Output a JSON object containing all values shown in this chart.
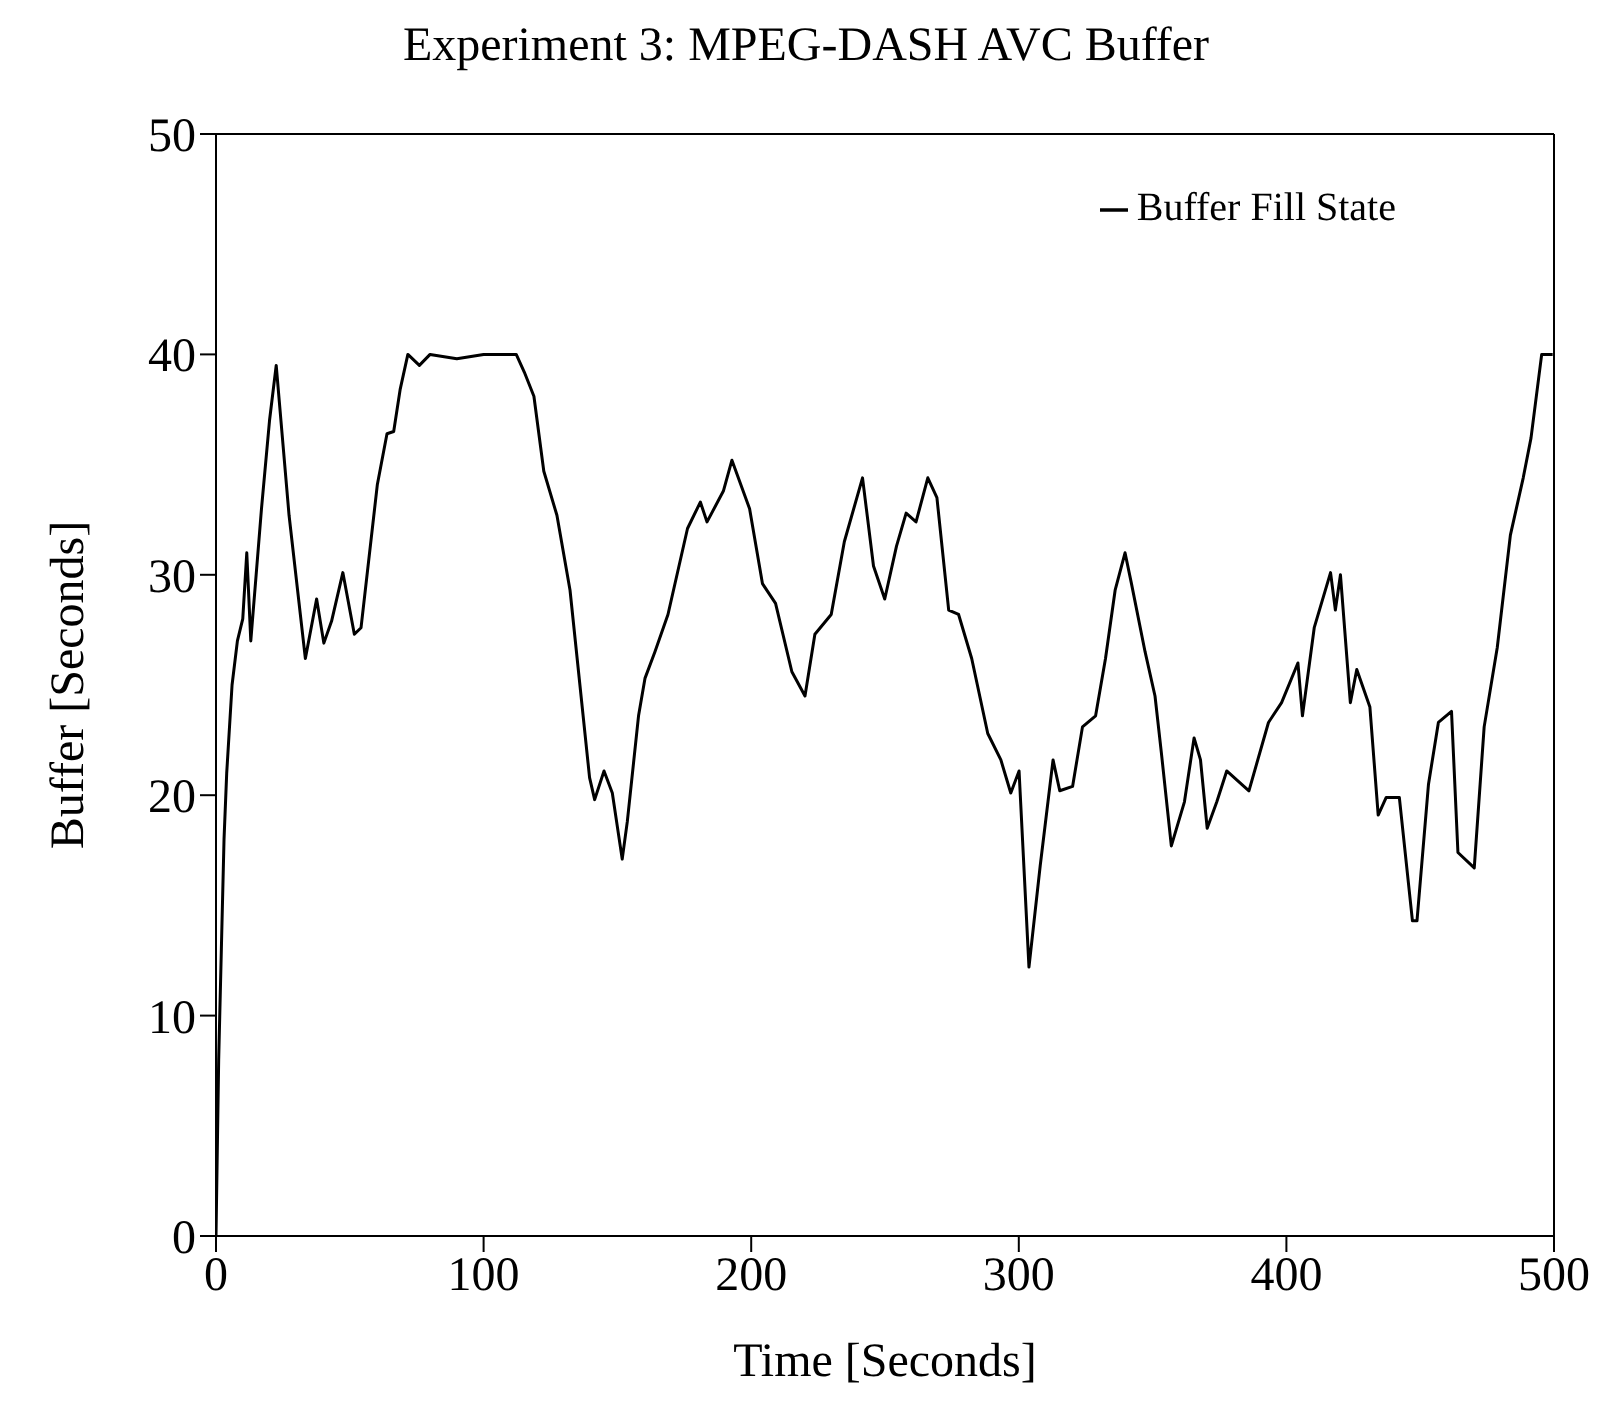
{
  "chart_data": {
    "type": "line",
    "title": "Experiment 3: MPEG-DASH AVC Buffer",
    "xlabel": "Time [Seconds]",
    "ylabel": "Buffer [Seconds]",
    "xlim": [
      0,
      500
    ],
    "xticks": [
      0,
      100,
      200,
      300,
      400,
      500
    ],
    "ylim": [
      0,
      50
    ],
    "yticks": [
      0,
      10,
      20,
      30,
      40,
      50
    ],
    "legend": "top right",
    "marker": "none",
    "line_style": "solid",
    "series": [
      {
        "name": "Buffer Fill State",
        "color": "#000000",
        "x": [
          0,
          1,
          2,
          3,
          4,
          6,
          8,
          10,
          11.5,
          13,
          15,
          17,
          20,
          22.5,
          27.3,
          33.4,
          37.6,
          40.3,
          43.2,
          47.4,
          51.7,
          54.2,
          60.3,
          63.9,
          66.4,
          68.8,
          71.7,
          76,
          80,
          90,
          100,
          112.2,
          115.2,
          118.8,
          122.5,
          127.4,
          132.3,
          139.6,
          141.5,
          145,
          148.1,
          151.8,
          153.7,
          157.9,
          160.3,
          164,
          168.9,
          176.2,
          181,
          183.5,
          189.6,
          192.8,
          199.4,
          204.2,
          209.1,
          215.2,
          220.1,
          223.8,
          229.9,
          234.8,
          241.6,
          245.7,
          249.9,
          254.3,
          257.9,
          261.6,
          266,
          269.4,
          273.8,
          277.5,
          282.4,
          288.4,
          293.3,
          297,
          300.1,
          303.8,
          308,
          312.8,
          315.3,
          320.1,
          323.8,
          328.7,
          332.4,
          336,
          339.7,
          342.1,
          347.2,
          350.9,
          353.3,
          357,
          361.9,
          365.5,
          367.9,
          370.4,
          374,
          377.7,
          386,
          393.3,
          398.2,
          404.3,
          406,
          410.4,
          416.5,
          418.3,
          420.2,
          423.9,
          426.3,
          431.2,
          434.3,
          437.3,
          442.2,
          447.1,
          448.8,
          453.1,
          456.8,
          461.7,
          464.1,
          470.2,
          473.9,
          478.8,
          483.7,
          488.5,
          491.4,
          495.4,
          499.5
        ],
        "values": [
          0,
          8,
          13,
          18,
          21,
          25,
          27,
          28,
          31,
          27,
          30,
          33,
          37,
          39.5,
          32.7,
          26.2,
          28.9,
          26.9,
          27.9,
          30.1,
          27.3,
          27.6,
          34.1,
          36.4,
          36.5,
          38.4,
          40,
          39.5,
          40,
          39.8,
          40,
          40,
          39.2,
          38.1,
          34.7,
          32.7,
          29.3,
          20.8,
          19.8,
          21.1,
          20.1,
          17.1,
          18.8,
          23.6,
          25.3,
          26.5,
          28.2,
          32.1,
          33.3,
          32.4,
          33.8,
          35.2,
          33,
          29.6,
          28.7,
          25.6,
          24.5,
          27.3,
          28.2,
          31.5,
          34.4,
          30.4,
          28.9,
          31.3,
          32.8,
          32.4,
          34.4,
          33.5,
          28.4,
          28.2,
          26.2,
          22.8,
          21.6,
          20.1,
          21.1,
          12.2,
          16.8,
          21.6,
          20.2,
          20.4,
          23.1,
          23.6,
          26.2,
          29.3,
          31,
          29.6,
          26.5,
          24.5,
          21.9,
          17.7,
          19.7,
          22.6,
          21.6,
          18.5,
          19.7,
          21.1,
          20.2,
          23.3,
          24.2,
          26,
          23.6,
          27.6,
          30.1,
          28.4,
          30,
          24.2,
          25.7,
          24,
          19.1,
          19.9,
          19.9,
          14.3,
          14.3,
          20.5,
          23.3,
          23.8,
          17.4,
          16.7,
          23.1,
          26.7,
          31.8,
          34.4,
          36.2,
          40,
          40
        ]
      }
    ]
  }
}
